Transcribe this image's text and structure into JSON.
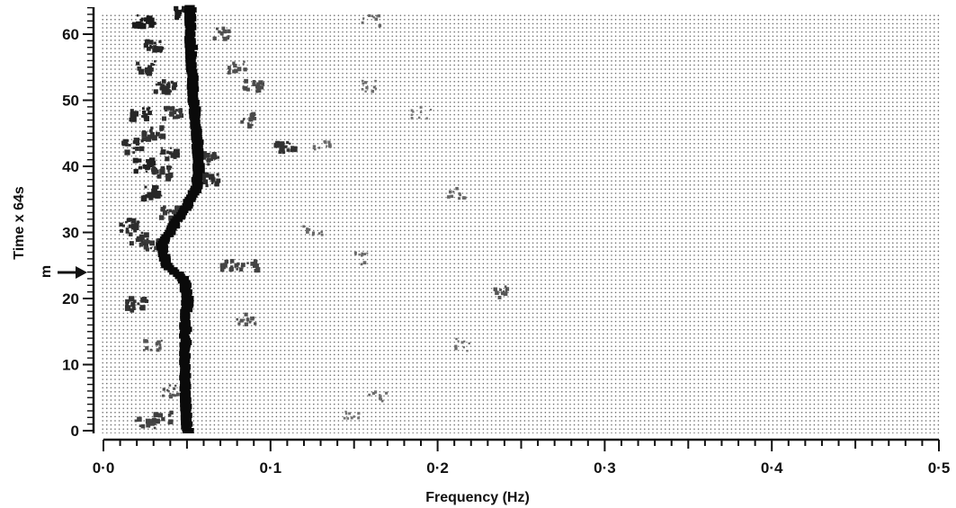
{
  "chart_data": {
    "type": "heatmap",
    "xlabel": "Frequency (Hz)",
    "ylabel": "Time x 64s",
    "xlim": [
      0.0,
      0.5
    ],
    "ylim": [
      0,
      64
    ],
    "x_ticks": [
      "0·0",
      "0·1",
      "0·2",
      "0·3",
      "0·4",
      "0·5"
    ],
    "x_tick_values": [
      0.0,
      0.1,
      0.2,
      0.3,
      0.4,
      0.5
    ],
    "y_ticks": [
      "0",
      "10",
      "20",
      "30",
      "40",
      "50",
      "60"
    ],
    "y_tick_values": [
      0,
      10,
      20,
      30,
      40,
      50,
      60
    ],
    "annotation": {
      "label": "m",
      "y": 24
    },
    "ridge": [
      {
        "t": 0,
        "f": 0.05
      },
      {
        "t": 8,
        "f": 0.049
      },
      {
        "t": 16,
        "f": 0.049
      },
      {
        "t": 20,
        "f": 0.05
      },
      {
        "t": 23,
        "f": 0.048
      },
      {
        "t": 25,
        "f": 0.038
      },
      {
        "t": 28,
        "f": 0.035
      },
      {
        "t": 31,
        "f": 0.042
      },
      {
        "t": 34,
        "f": 0.05
      },
      {
        "t": 37,
        "f": 0.056
      },
      {
        "t": 40,
        "f": 0.057
      },
      {
        "t": 45,
        "f": 0.056
      },
      {
        "t": 50,
        "f": 0.054
      },
      {
        "t": 55,
        "f": 0.053
      },
      {
        "t": 60,
        "f": 0.052
      },
      {
        "t": 64,
        "f": 0.052
      }
    ],
    "blobs": [
      {
        "t": 62,
        "f": 0.025,
        "i": 0.95
      },
      {
        "t": 58,
        "f": 0.03,
        "i": 0.85
      },
      {
        "t": 55,
        "f": 0.025,
        "i": 0.8
      },
      {
        "t": 52,
        "f": 0.037,
        "i": 0.8
      },
      {
        "t": 48,
        "f": 0.022,
        "i": 0.85
      },
      {
        "t": 48,
        "f": 0.042,
        "i": 0.7
      },
      {
        "t": 45,
        "f": 0.03,
        "i": 0.75
      },
      {
        "t": 43,
        "f": 0.018,
        "i": 0.8
      },
      {
        "t": 42,
        "f": 0.04,
        "i": 0.8
      },
      {
        "t": 40,
        "f": 0.025,
        "i": 0.9
      },
      {
        "t": 39,
        "f": 0.035,
        "i": 0.75
      },
      {
        "t": 38,
        "f": 0.063,
        "i": 0.8
      },
      {
        "t": 36,
        "f": 0.03,
        "i": 0.85
      },
      {
        "t": 33,
        "f": 0.04,
        "i": 0.7
      },
      {
        "t": 31,
        "f": 0.015,
        "i": 0.8
      },
      {
        "t": 29,
        "f": 0.022,
        "i": 0.75
      },
      {
        "t": 28,
        "f": 0.028,
        "i": 0.7
      },
      {
        "t": 19,
        "f": 0.02,
        "i": 0.75
      },
      {
        "t": 2,
        "f": 0.035,
        "i": 0.65
      },
      {
        "t": 1,
        "f": 0.025,
        "i": 0.6
      },
      {
        "t": 63,
        "f": 0.048,
        "i": 0.95
      },
      {
        "t": 41,
        "f": 0.063,
        "i": 0.7
      },
      {
        "t": 43,
        "f": 0.109,
        "i": 0.75
      },
      {
        "t": 25,
        "f": 0.075,
        "i": 0.6
      },
      {
        "t": 25,
        "f": 0.087,
        "i": 0.6
      },
      {
        "t": 52,
        "f": 0.09,
        "i": 0.55
      },
      {
        "t": 47,
        "f": 0.085,
        "i": 0.55
      },
      {
        "t": 55,
        "f": 0.08,
        "i": 0.5
      },
      {
        "t": 60,
        "f": 0.072,
        "i": 0.5
      },
      {
        "t": 17,
        "f": 0.085,
        "i": 0.45
      },
      {
        "t": 13,
        "f": 0.03,
        "i": 0.45
      },
      {
        "t": 6,
        "f": 0.04,
        "i": 0.45
      },
      {
        "t": 21,
        "f": 0.237,
        "i": 0.45
      },
      {
        "t": 26,
        "f": 0.155,
        "i": 0.3
      },
      {
        "t": 62,
        "f": 0.16,
        "i": 0.3
      },
      {
        "t": 52,
        "f": 0.16,
        "i": 0.25
      },
      {
        "t": 36,
        "f": 0.212,
        "i": 0.3
      },
      {
        "t": 43,
        "f": 0.13,
        "i": 0.3
      },
      {
        "t": 13,
        "f": 0.215,
        "i": 0.25
      },
      {
        "t": 5,
        "f": 0.165,
        "i": 0.25
      },
      {
        "t": 2,
        "f": 0.15,
        "i": 0.2
      },
      {
        "t": 30,
        "f": 0.125,
        "i": 0.3
      },
      {
        "t": 48,
        "f": 0.19,
        "i": 0.2
      }
    ]
  }
}
